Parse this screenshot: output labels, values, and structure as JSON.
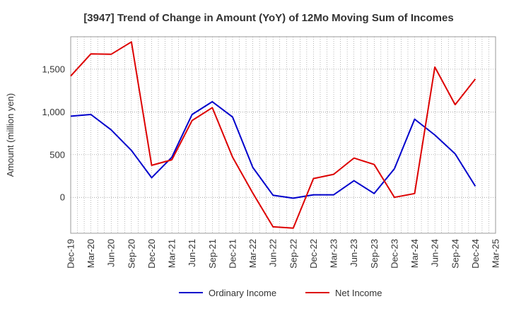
{
  "chart_data": {
    "type": "line",
    "title": "[3947]  Trend of Change in Amount (YoY) of 12Mo Moving Sum of Incomes",
    "ylabel": "Amount (million yen)",
    "xlabel": "",
    "ylim": [
      -420,
      1880
    ],
    "yticks": [
      0,
      500,
      1000,
      1500
    ],
    "ytick_labels": [
      "0",
      "500",
      "1,000",
      "1,500"
    ],
    "x": [
      "Dec-19",
      "Mar-20",
      "Jun-20",
      "Sep-20",
      "Dec-20",
      "Mar-21",
      "Jun-21",
      "Sep-21",
      "Dec-21",
      "Mar-22",
      "Jun-22",
      "Sep-22",
      "Dec-22",
      "Mar-23",
      "Jun-23",
      "Sep-23",
      "Dec-23",
      "Mar-24",
      "Jun-24",
      "Sep-24",
      "Dec-24",
      "Mar-25"
    ],
    "grid": true,
    "legend_position": "bottom",
    "series": [
      {
        "name": "Ordinary Income",
        "color": "#0000cc",
        "values": [
          950,
          970,
          790,
          550,
          230,
          470,
          970,
          1120,
          940,
          350,
          25,
          -10,
          30,
          30,
          195,
          45,
          335,
          915,
          730,
          510,
          130,
          null
        ]
      },
      {
        "name": "Net Income",
        "color": "#dd0000",
        "values": [
          1420,
          1680,
          1675,
          1820,
          375,
          440,
          900,
          1050,
          470,
          50,
          -345,
          -360,
          220,
          270,
          460,
          385,
          0,
          45,
          1525,
          1085,
          1385,
          null
        ]
      }
    ]
  }
}
